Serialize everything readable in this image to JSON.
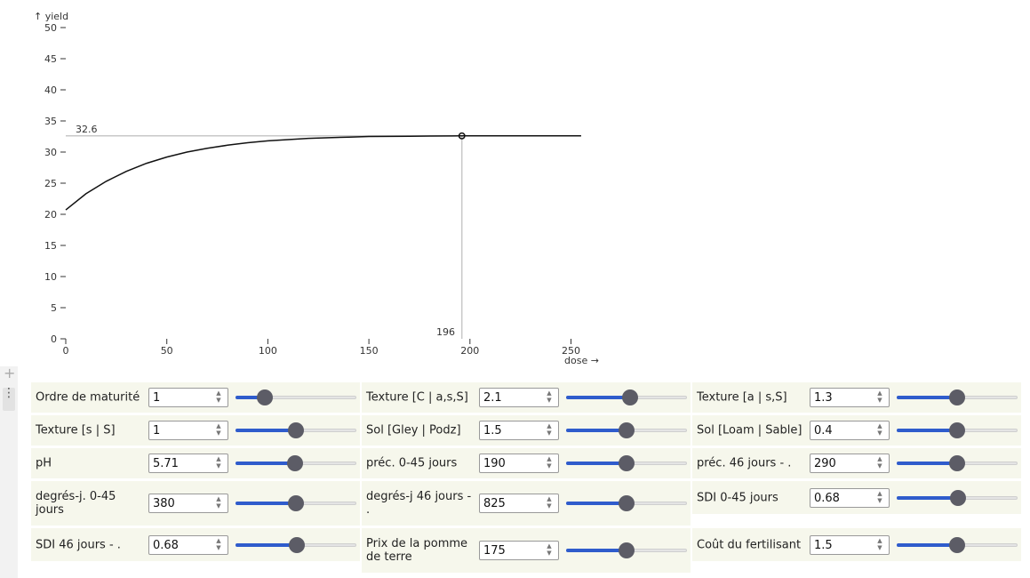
{
  "chart_data": {
    "type": "line",
    "ylabel": "↑ yield",
    "xlabel": "dose →",
    "xlim": [
      0,
      255
    ],
    "ylim": [
      0,
      50
    ],
    "x_ticks": [
      0,
      50,
      100,
      150,
      200,
      250
    ],
    "y_ticks": [
      0,
      5,
      10,
      15,
      20,
      25,
      30,
      35,
      40,
      45,
      50
    ],
    "curve": {
      "x": [
        0,
        10,
        20,
        30,
        40,
        50,
        60,
        70,
        80,
        90,
        100,
        110,
        120,
        130,
        140,
        150,
        160,
        170,
        180,
        190,
        196,
        200,
        210,
        220,
        230,
        240,
        255
      ],
      "y": [
        20.7,
        23.3,
        25.3,
        26.9,
        28.2,
        29.2,
        30.0,
        30.6,
        31.1,
        31.5,
        31.8,
        32.0,
        32.2,
        32.3,
        32.4,
        32.5,
        32.52,
        32.55,
        32.57,
        32.59,
        32.6,
        32.6,
        32.6,
        32.6,
        32.6,
        32.6,
        32.6
      ]
    },
    "optimum": {
      "x": 196,
      "y": 32.6,
      "x_label": "196",
      "y_label": "32.6"
    }
  },
  "controls": [
    [
      {
        "label": "Ordre de maturité",
        "value": "1",
        "fraction": 0.24
      },
      {
        "label": "Texture [C | a,s,S]",
        "value": "2.1",
        "fraction": 0.53
      },
      {
        "label": "Texture [a | s,S]",
        "value": "1.3",
        "fraction": 0.5
      }
    ],
    [
      {
        "label": "Texture [s | S]",
        "value": "1",
        "fraction": 0.5
      },
      {
        "label": "Sol [Gley | Podz]",
        "value": "1.5",
        "fraction": 0.5
      },
      {
        "label": "Sol [Loam | Sable]",
        "value": "0.4",
        "fraction": 0.5
      }
    ],
    [
      {
        "label": "pH",
        "value": "5.71",
        "fraction": 0.49
      },
      {
        "label": "préc. 0-45 jours",
        "value": "190",
        "fraction": 0.5
      },
      {
        "label": "préc. 46 jours - .",
        "value": "290",
        "fraction": 0.5
      }
    ],
    [
      {
        "label": "degrés-j. 0-45 jours",
        "value": "380",
        "fraction": 0.5
      },
      {
        "label": "degrés-j 46 jours - .",
        "value": "825",
        "fraction": 0.5
      },
      {
        "label": "SDI 0-45 jours",
        "value": "0.68",
        "fraction": 0.51
      }
    ],
    [
      {
        "label": "SDI 46 jours - .",
        "value": "0.68",
        "fraction": 0.51
      },
      {
        "label": "Prix de la pomme de terre",
        "value": "175",
        "fraction": 0.5
      },
      {
        "label": "Coût du fertilisant",
        "value": "1.5",
        "fraction": 0.5
      }
    ]
  ],
  "gutter": {
    "add_symbol": "+",
    "menu_symbol": "⋮"
  }
}
